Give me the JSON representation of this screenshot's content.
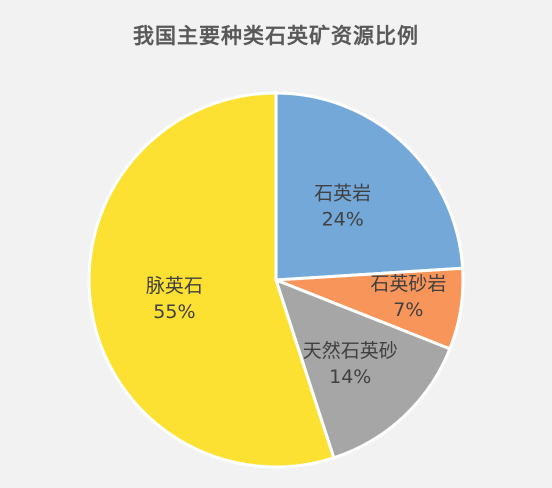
{
  "chart_data": {
    "type": "pie",
    "title": "我国主要种类石英矿资源比例",
    "categories": [
      "石英岩",
      "石英砂岩",
      "天然石英砂",
      "脉英石"
    ],
    "values": [
      24,
      7,
      14,
      55
    ],
    "value_labels": [
      "24%",
      "7%",
      "14%",
      "55%"
    ],
    "colors": [
      "#74a8d8",
      "#f7955a",
      "#a6a6a6",
      "#fde132"
    ],
    "start_angle_deg": 0,
    "direction": "clockwise",
    "legend": "none"
  }
}
